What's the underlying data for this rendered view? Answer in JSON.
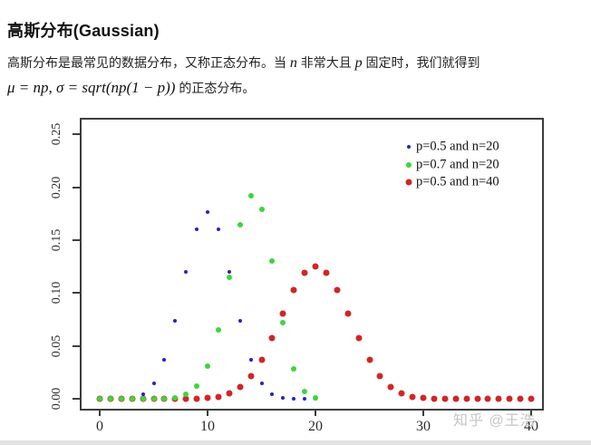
{
  "page_title": "高斯分布(Gaussian)",
  "intro": {
    "seg1": "高斯分布是最常见的数据分布，又称正态分布。当 ",
    "var_n": "n",
    "seg2": " 非常大且 ",
    "var_p": "p",
    "seg3": " 固定时，我们就得到",
    "formula": "μ = np, σ = sqrt(np(1 − p))",
    "seg4": " 的正态分布。"
  },
  "watermark": "知乎 @王浩",
  "chart_data": {
    "type": "scatter",
    "title": "",
    "xlabel": "",
    "ylabel": "",
    "xlim": [
      0,
      40
    ],
    "ylim": [
      0,
      0.25
    ],
    "grid": false,
    "x_ticks": [
      0,
      10,
      20,
      30,
      40
    ],
    "y_ticks": [
      "0.00",
      "0.05",
      "0.10",
      "0.15",
      "0.20",
      "0.25"
    ],
    "legend_position": "top-right-inside",
    "axis_color": "#3d3d3d",
    "series": [
      {
        "name": "p=0.5 and n=20",
        "color": "#2323c4",
        "marker_px": 4,
        "x": [
          0,
          1,
          2,
          3,
          4,
          5,
          6,
          7,
          8,
          9,
          10,
          11,
          12,
          13,
          14,
          15,
          16,
          17,
          18,
          19,
          20
        ],
        "values": [
          0,
          2e-05,
          0.00018,
          0.00109,
          0.00462,
          0.01479,
          0.03696,
          0.07393,
          0.12013,
          0.16018,
          0.1762,
          0.16018,
          0.12013,
          0.07393,
          0.03696,
          0.01479,
          0.00462,
          0.00109,
          0.00018,
          2e-05,
          0
        ]
      },
      {
        "name": "p=0.7 and n=20",
        "color": "#3cd63c",
        "marker_px": 6,
        "x": [
          0,
          1,
          2,
          3,
          4,
          5,
          6,
          7,
          8,
          9,
          10,
          11,
          12,
          13,
          14,
          15,
          16,
          17,
          18,
          19,
          20
        ],
        "values": [
          0,
          0,
          0,
          0,
          1e-05,
          4e-05,
          0.00022,
          0.00102,
          0.00386,
          0.01201,
          0.03082,
          0.06537,
          0.1144,
          0.16426,
          0.19164,
          0.17886,
          0.13042,
          0.0716,
          0.02785,
          0.00684,
          0.0008
        ]
      },
      {
        "name": "p=0.5 and n=40",
        "color": "#d02626",
        "marker_px": 7,
        "x": [
          0,
          1,
          2,
          3,
          4,
          5,
          6,
          7,
          8,
          9,
          10,
          11,
          12,
          13,
          14,
          15,
          16,
          17,
          18,
          19,
          20,
          21,
          22,
          23,
          24,
          25,
          26,
          27,
          28,
          29,
          30,
          31,
          32,
          33,
          34,
          35,
          36,
          37,
          38,
          39,
          40
        ],
        "values": [
          0,
          0,
          0,
          0,
          0,
          0,
          0,
          2e-05,
          7e-05,
          0.00025,
          0.00077,
          0.0021,
          0.00508,
          0.01094,
          0.02111,
          0.03658,
          0.05716,
          0.0807,
          0.10312,
          0.1194,
          0.12537,
          0.1194,
          0.10312,
          0.0807,
          0.05716,
          0.03658,
          0.02111,
          0.01094,
          0.00508,
          0.0021,
          0.00077,
          0.00025,
          7e-05,
          2e-05,
          0,
          0,
          0,
          0,
          0,
          0,
          0
        ]
      }
    ]
  }
}
